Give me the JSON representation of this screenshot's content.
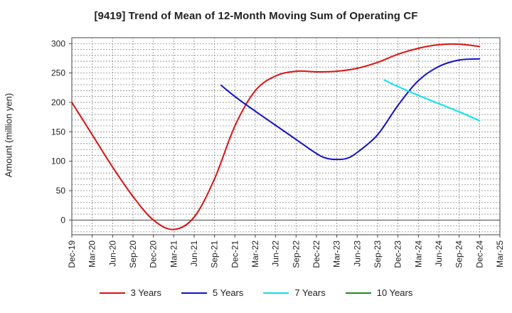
{
  "chart_data": {
    "type": "line",
    "title": "[9419]  Trend of Mean of 12-Month Moving Sum of Operating CF",
    "xlabel": "",
    "ylabel": "Amount (million yen)",
    "ylim": [
      -25,
      310
    ],
    "yticks": [
      0,
      50,
      100,
      150,
      200,
      250,
      300
    ],
    "x_tick_labels": [
      "Dec-19",
      "Mar-20",
      "Jun-20",
      "Sep-20",
      "Dec-20",
      "Mar-21",
      "Jun-21",
      "Sep-21",
      "Dec-21",
      "Mar-22",
      "Jun-22",
      "Sep-22",
      "Dec-22",
      "Mar-23",
      "Jun-23",
      "Sep-23",
      "Dec-23",
      "Mar-24",
      "Jun-24",
      "Sep-24",
      "Dec-24",
      "Mar-25"
    ],
    "x_index_note": "x values are quarter index: 0 = Dec-19, 21 = Mar-25",
    "grid": true,
    "legend_position": "bottom",
    "series": [
      {
        "name": "3 Years",
        "color": "#dd1111",
        "points": [
          [
            0,
            200
          ],
          [
            1,
            145
          ],
          [
            2,
            90
          ],
          [
            3,
            40
          ],
          [
            4,
            0
          ],
          [
            5,
            -16
          ],
          [
            6,
            5
          ],
          [
            7,
            70
          ],
          [
            8,
            160
          ],
          [
            9,
            220
          ],
          [
            10,
            245
          ],
          [
            11,
            253
          ],
          [
            12,
            252
          ],
          [
            13,
            253
          ],
          [
            14,
            258
          ],
          [
            15,
            268
          ],
          [
            16,
            282
          ],
          [
            17,
            292
          ],
          [
            18,
            298
          ],
          [
            19,
            299
          ],
          [
            20,
            295
          ]
        ]
      },
      {
        "name": "5 Years",
        "color": "#1111cc",
        "points": [
          [
            7.33,
            229
          ],
          [
            8,
            210
          ],
          [
            9,
            185
          ],
          [
            10,
            161
          ],
          [
            11,
            137
          ],
          [
            12,
            113
          ],
          [
            12.5,
            105
          ],
          [
            13,
            103
          ],
          [
            13.5,
            105
          ],
          [
            14,
            115
          ],
          [
            15,
            145
          ],
          [
            16,
            195
          ],
          [
            17,
            237
          ],
          [
            18,
            261
          ],
          [
            19,
            272
          ],
          [
            20,
            274
          ]
        ]
      },
      {
        "name": "7 Years",
        "color": "#00e5ee",
        "points": [
          [
            15.33,
            238
          ],
          [
            16,
            227
          ],
          [
            17,
            212
          ],
          [
            18,
            198
          ],
          [
            19,
            184
          ],
          [
            20,
            169
          ]
        ]
      },
      {
        "name": "10 Years",
        "color": "#228B22",
        "points": []
      }
    ]
  }
}
